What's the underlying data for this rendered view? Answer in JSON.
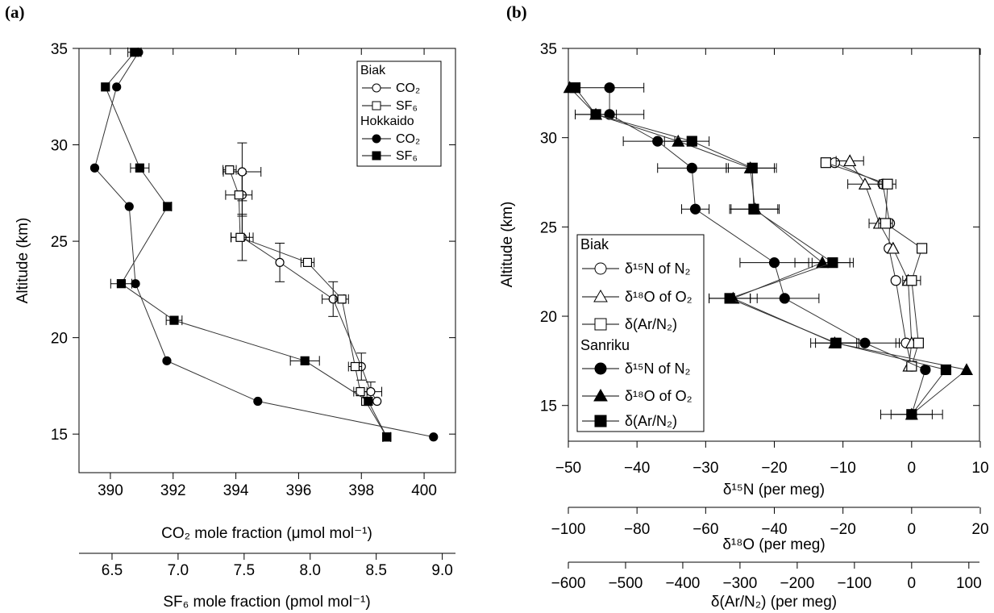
{
  "figure": {
    "panel_a_label": "(a)",
    "panel_b_label": "(b)"
  },
  "chart_data": [
    {
      "panel": "(a)",
      "type": "line",
      "ylabel": "Altitude (km)",
      "ylim": [
        13,
        35
      ],
      "yticks": [
        15,
        20,
        25,
        30,
        35
      ],
      "xaxes": [
        {
          "label": "CO₂ mole fraction (μmol mol⁻¹)",
          "range": [
            389,
            401
          ],
          "ticks": [
            390,
            392,
            394,
            396,
            398,
            400
          ]
        },
        {
          "label": "SF₆ mole fraction (pmol mol⁻¹)",
          "range": [
            6.25,
            9.1
          ],
          "ticks": [
            "6.5",
            "7.0",
            "7.5",
            "8.0",
            "8.5",
            "9.0"
          ]
        }
      ],
      "legend": {
        "placement": "top-right",
        "groups": [
          {
            "title": "Biak",
            "entries": [
              {
                "label": "CO₂"
              },
              {
                "label": "SF₆"
              }
            ]
          },
          {
            "title": "Hokkaido",
            "entries": [
              {
                "label": "CO₂"
              },
              {
                "label": "SF₆"
              }
            ]
          }
        ]
      },
      "series": [
        {
          "site": "Biak",
          "gas": "CO₂",
          "marker": "circle",
          "filled": false,
          "axis": 0,
          "points": [
            [
              394.2,
              28.6,
              0.6,
              1.5
            ],
            [
              394.2,
              27.4,
              0,
              1.1
            ],
            [
              394.2,
              25.2,
              0.35,
              1.2
            ],
            [
              395.4,
              23.9,
              0,
              1.0
            ],
            [
              397.1,
              22.0,
              0.35,
              0.9
            ],
            [
              398.0,
              18.5,
              0,
              0.7
            ],
            [
              398.3,
              17.2,
              0.35,
              0.5
            ],
            [
              398.5,
              16.7,
              0,
              0
            ]
          ]
        },
        {
          "site": "Biak",
          "gas": "SF₆",
          "marker": "square",
          "filled": false,
          "axis": 1,
          "points": [
            [
              7.39,
              28.7,
              0.05,
              0
            ],
            [
              7.46,
              27.4,
              0.1,
              0
            ],
            [
              7.47,
              25.2,
              0.07,
              0
            ],
            [
              7.98,
              23.9,
              0.05,
              0
            ],
            [
              8.24,
              22.0,
              0.05,
              0
            ],
            [
              8.34,
              18.5,
              0.05,
              0
            ],
            [
              8.38,
              17.2,
              0.05,
              0
            ],
            [
              8.42,
              16.7,
              0,
              0
            ],
            [
              8.58,
              14.85,
              0.03,
              0
            ]
          ]
        },
        {
          "site": "Hokkaido",
          "gas": "CO₂",
          "marker": "circle",
          "filled": true,
          "axis": 0,
          "points": [
            [
              390.9,
              34.8,
              0,
              0
            ],
            [
              390.2,
              33.0,
              0,
              0
            ],
            [
              389.5,
              28.8,
              0,
              0
            ],
            [
              390.6,
              26.8,
              0,
              0
            ],
            [
              390.8,
              22.8,
              0,
              0
            ],
            [
              391.8,
              18.8,
              0,
              0
            ],
            [
              394.7,
              16.7,
              0,
              0
            ],
            [
              400.3,
              14.85,
              0,
              0
            ]
          ]
        },
        {
          "site": "Hokkaido",
          "gas": "SF₆",
          "marker": "square",
          "filled": true,
          "axis": 1,
          "points": [
            [
              6.67,
              34.8,
              0.05,
              0
            ],
            [
              6.45,
              33.0,
              0,
              0
            ],
            [
              6.71,
              28.8,
              0.07,
              0
            ],
            [
              6.92,
              26.8,
              0.03,
              0
            ],
            [
              6.57,
              22.8,
              0.08,
              0
            ],
            [
              6.97,
              20.9,
              0.06,
              0
            ],
            [
              7.96,
              18.8,
              0.11,
              0
            ],
            [
              8.44,
              16.7,
              0,
              0
            ],
            [
              8.58,
              14.85,
              0.03,
              0
            ]
          ]
        }
      ]
    },
    {
      "panel": "(b)",
      "type": "line",
      "ylabel": "Altitude (km)",
      "ylim": [
        13,
        35
      ],
      "yticks": [
        15,
        20,
        25,
        30,
        35
      ],
      "xaxes": [
        {
          "label": "δ¹⁵N (per meg)",
          "range": [
            -50,
            10
          ],
          "ticks": [
            -50,
            -40,
            -30,
            -20,
            -10,
            0,
            10
          ]
        },
        {
          "label": "δ¹⁸O (per meg)",
          "range": [
            -100,
            20
          ],
          "ticks": [
            -100,
            -80,
            -60,
            -40,
            -20,
            0,
            20
          ]
        },
        {
          "label": "δ(Ar/N₂) (per meg)",
          "range": [
            -600,
            120
          ],
          "ticks": [
            -600,
            -500,
            -400,
            -300,
            -200,
            -100,
            0,
            100
          ]
        }
      ],
      "legend": {
        "placement": "bottom-left",
        "groups": [
          {
            "title": "Biak",
            "entries": [
              {
                "label": "δ¹⁵N of N₂"
              },
              {
                "label": "δ¹⁸O of O₂"
              },
              {
                "label": "δ(Ar/N₂)"
              }
            ]
          },
          {
            "title": "Sanriku",
            "entries": [
              {
                "label": "δ¹⁵N of N₂"
              },
              {
                "label": "δ¹⁸O of O₂"
              },
              {
                "label": "δ(Ar/N₂)"
              }
            ]
          }
        ]
      },
      "series": [
        {
          "site": "Biak",
          "quantity": "δ¹⁵N of N₂",
          "marker": "circle",
          "filled": false,
          "points": [
            [
              -11.2,
              28.6,
              0
            ],
            [
              -4.2,
              27.4,
              0
            ],
            [
              -3.2,
              25.2,
              0
            ],
            [
              -3.3,
              23.8,
              0
            ],
            [
              -2.3,
              22.0,
              0
            ],
            [
              -0.8,
              18.5,
              1.5
            ],
            [
              0.0,
              17.2,
              0
            ]
          ]
        },
        {
          "site": "Biak",
          "quantity": "δ¹⁸O of O₂",
          "marker": "triangle",
          "filled": false,
          "points": [
            [
              -9.0,
              28.7,
              2.0
            ],
            [
              -6.8,
              27.4,
              2.5
            ],
            [
              -4.7,
              25.2,
              1.5
            ],
            [
              -2.7,
              23.8,
              0
            ],
            [
              -0.5,
              22.0,
              0
            ],
            [
              0.0,
              18.5,
              0
            ],
            [
              -0.4,
              17.2,
              0
            ]
          ]
        },
        {
          "site": "Biak",
          "quantity": "δ(Ar/N₂)",
          "marker": "square",
          "filled": false,
          "points": [
            [
              -12.5,
              28.6,
              0
            ],
            [
              -3.5,
              27.4,
              1.2
            ],
            [
              -3.8,
              25.2,
              1.0
            ],
            [
              1.5,
              23.8,
              0
            ],
            [
              0.0,
              22.0,
              1.3
            ],
            [
              1.0,
              18.5,
              0
            ],
            [
              0.0,
              17.2,
              0
            ]
          ]
        },
        {
          "site": "Sanriku",
          "quantity": "δ¹⁵N of N₂",
          "marker": "circle",
          "filled": true,
          "points": [
            [
              -44.0,
              32.8,
              5.0
            ],
            [
              -44.0,
              31.3,
              5.0
            ],
            [
              -37.0,
              29.8,
              5.0
            ],
            [
              -32.0,
              28.3,
              5.0
            ],
            [
              -31.5,
              26.0,
              2.0
            ],
            [
              -20.0,
              23.0,
              5.0
            ],
            [
              -18.5,
              21.0,
              5.0
            ],
            [
              -6.8,
              18.5,
              5.0
            ],
            [
              2.0,
              17.0,
              0
            ],
            [
              0.0,
              14.5,
              4.5
            ]
          ]
        },
        {
          "site": "Sanriku",
          "quantity": "δ¹⁸O of O₂",
          "marker": "triangle",
          "filled": true,
          "points": [
            [
              -49.8,
              32.8,
              0
            ],
            [
              -46.0,
              31.3,
              0
            ],
            [
              -34.0,
              29.8,
              2.0
            ],
            [
              -23.5,
              28.3,
              3.5
            ],
            [
              -22.8,
              26.0,
              3.5
            ],
            [
              -13.0,
              23.0,
              4.0
            ],
            [
              -26.0,
              21.0,
              3.5
            ],
            [
              -11.2,
              18.5,
              3.5
            ],
            [
              8.0,
              17.0,
              0
            ],
            [
              0.0,
              14.5,
              0
            ]
          ]
        },
        {
          "site": "Sanriku",
          "quantity": "δ(Ar/N₂)",
          "marker": "square",
          "filled": true,
          "points": [
            [
              -49.0,
              32.8,
              0
            ],
            [
              -46.0,
              31.3,
              3.0
            ],
            [
              -32.0,
              29.8,
              2.5
            ],
            [
              -23.2,
              28.3,
              3.5
            ],
            [
              -23.0,
              26.0,
              3.5
            ],
            [
              -11.5,
              23.0,
              3.0
            ],
            [
              -26.5,
              21.0,
              3.0
            ],
            [
              -11.0,
              18.5,
              3.0
            ],
            [
              5.0,
              17.0,
              0
            ],
            [
              0.0,
              14.5,
              3.0
            ]
          ]
        }
      ]
    }
  ]
}
